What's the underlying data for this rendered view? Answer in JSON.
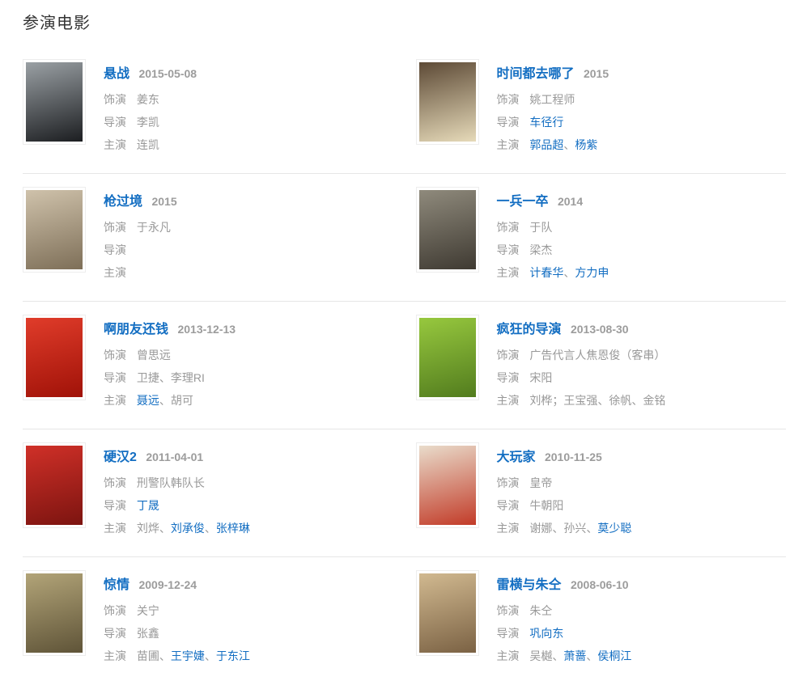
{
  "section": {
    "title": "参演电影"
  },
  "labels": {
    "role": "饰演",
    "director": "导演",
    "starring": "主演"
  },
  "colors": {
    "link_blue": "#136ec2",
    "body_gray": "#999999",
    "date_gray": "#9c9c9c",
    "heading": "#333333",
    "divider": "#e6e6e6",
    "background": "#ffffff"
  },
  "movies": [
    {
      "title": "悬战",
      "date": "2015-05-08",
      "poster": {
        "name": "poster-xuanzhan",
        "top": "#9aa0a4",
        "bottom": "#1c1e21"
      },
      "role": [
        {
          "text": "姜东",
          "link": false
        }
      ],
      "director": [
        {
          "text": "李凯",
          "link": false
        }
      ],
      "starring": [
        {
          "text": "连凯",
          "link": false
        }
      ]
    },
    {
      "title": "时间都去哪了",
      "date": "2015",
      "poster": {
        "name": "poster-shijian-dou-qu-nale",
        "top": "#5d4a36",
        "bottom": "#e6dab9"
      },
      "role": [
        {
          "text": "姚工程师",
          "link": false
        }
      ],
      "director": [
        {
          "text": "车径行",
          "link": true
        }
      ],
      "starring": [
        {
          "text": "郭品超",
          "link": true
        },
        {
          "text": "、",
          "link": false
        },
        {
          "text": "杨紫",
          "link": true
        }
      ]
    },
    {
      "title": "枪过境",
      "date": "2015",
      "poster": {
        "name": "poster-qiang-guojing",
        "top": "#cfc2ab",
        "bottom": "#7e6f58"
      },
      "role": [
        {
          "text": "于永凡",
          "link": false
        }
      ],
      "director": [],
      "starring": []
    },
    {
      "title": "一兵一卒",
      "date": "2014",
      "poster": {
        "name": "poster-yibing-yizu",
        "top": "#8f8a7c",
        "bottom": "#3f3a32"
      },
      "role": [
        {
          "text": "于队",
          "link": false
        }
      ],
      "director": [
        {
          "text": "梁杰",
          "link": false
        }
      ],
      "starring": [
        {
          "text": "计春华",
          "link": true
        },
        {
          "text": "、",
          "link": false
        },
        {
          "text": "方力申",
          "link": true
        }
      ]
    },
    {
      "title": "啊朋友还钱",
      "date": "2013-12-13",
      "poster": {
        "name": "poster-a-pengyou-huanqian",
        "top": "#e03c2a",
        "bottom": "#a01208"
      },
      "role": [
        {
          "text": "曾思远",
          "link": false
        }
      ],
      "director": [
        {
          "text": "卫捷、李理RI",
          "link": false
        }
      ],
      "starring": [
        {
          "text": "聂远",
          "link": true
        },
        {
          "text": "、",
          "link": false
        },
        {
          "text": "胡可",
          "link": false
        }
      ]
    },
    {
      "title": "疯狂的导演",
      "date": "2013-08-30",
      "poster": {
        "name": "poster-fengkuang-de-daoyan",
        "top": "#97c83e",
        "bottom": "#527c1e"
      },
      "role": [
        {
          "text": "广告代言人焦恩俊（客串）",
          "link": false
        }
      ],
      "director": [
        {
          "text": "宋阳",
          "link": false
        }
      ],
      "starring": [
        {
          "text": "刘桦；王宝强、徐帆、金铭",
          "link": false
        }
      ]
    },
    {
      "title": "硬汉2",
      "date": "2011-04-01",
      "poster": {
        "name": "poster-yinghan-2",
        "top": "#d03028",
        "bottom": "#7c1410"
      },
      "role": [
        {
          "text": "刑警队韩队长",
          "link": false
        }
      ],
      "director": [
        {
          "text": "丁晟",
          "link": true
        }
      ],
      "starring": [
        {
          "text": "刘烨",
          "link": false
        },
        {
          "text": "、",
          "link": false
        },
        {
          "text": "刘承俊",
          "link": true
        },
        {
          "text": "、",
          "link": false
        },
        {
          "text": "张梓琳",
          "link": true
        }
      ]
    },
    {
      "title": "大玩家",
      "date": "2010-11-25",
      "poster": {
        "name": "poster-da-wanjia",
        "top": "#e9dccb",
        "bottom": "#c23b28"
      },
      "role": [
        {
          "text": "皇帝",
          "link": false
        }
      ],
      "director": [
        {
          "text": "牛朝阳",
          "link": false
        }
      ],
      "starring": [
        {
          "text": "谢娜",
          "link": false
        },
        {
          "text": "、",
          "link": false
        },
        {
          "text": "孙兴",
          "link": false
        },
        {
          "text": "、",
          "link": false
        },
        {
          "text": "莫少聪",
          "link": true
        }
      ]
    },
    {
      "title": "惊情",
      "date": "2009-12-24",
      "poster": {
        "name": "poster-jingqing",
        "top": "#b2a478",
        "bottom": "#5f5438"
      },
      "role": [
        {
          "text": "关宁",
          "link": false
        }
      ],
      "director": [
        {
          "text": "张鑫",
          "link": false
        }
      ],
      "starring": [
        {
          "text": "苗圃",
          "link": false
        },
        {
          "text": "、",
          "link": false
        },
        {
          "text": "王宇婕",
          "link": true
        },
        {
          "text": "、",
          "link": false
        },
        {
          "text": "于东江",
          "link": true
        }
      ]
    },
    {
      "title": "雷横与朱仝",
      "date": "2008-06-10",
      "poster": {
        "name": "poster-leiheng-yu-zhutong",
        "top": "#d1b990",
        "bottom": "#7b6244"
      },
      "role": [
        {
          "text": "朱仝",
          "link": false
        }
      ],
      "director": [
        {
          "text": "巩向东",
          "link": true
        }
      ],
      "starring": [
        {
          "text": "吴樾",
          "link": false
        },
        {
          "text": "、",
          "link": false
        },
        {
          "text": "萧蔷",
          "link": true
        },
        {
          "text": "、",
          "link": false
        },
        {
          "text": "侯桐江",
          "link": true
        }
      ]
    }
  ]
}
